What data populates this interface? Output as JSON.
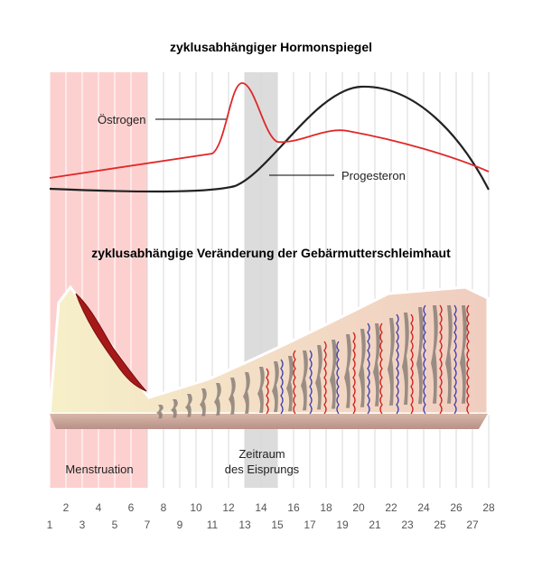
{
  "titles": {
    "hormones": "zyklusabhängiger Hormonspiegel",
    "endometrium": "zyklusabhängige Veränderung der Gebärmutterschleimhaut"
  },
  "labels": {
    "estrogen": "Östrogen",
    "progesterone": "Progesteron",
    "menstruation": "Menstruation",
    "ovulation": [
      "Zeitraum",
      "des Eisprungs"
    ]
  },
  "days": [
    1,
    2,
    3,
    4,
    5,
    6,
    7,
    8,
    9,
    10,
    11,
    12,
    13,
    14,
    15,
    16,
    17,
    18,
    19,
    20,
    21,
    22,
    23,
    24,
    25,
    26,
    27,
    28
  ]
}
